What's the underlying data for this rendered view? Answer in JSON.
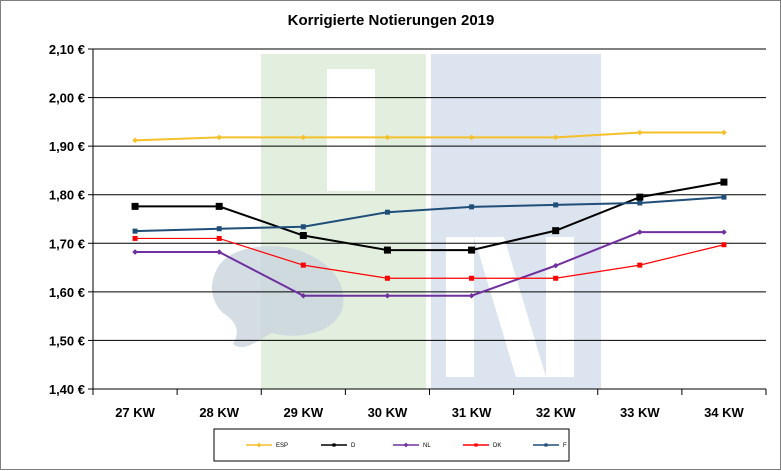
{
  "chart_data": {
    "type": "line",
    "title": "Korrigierte Notierungen 2019",
    "categories": [
      "27 KW",
      "28 KW",
      "29 KW",
      "30 KW",
      "31 KW",
      "32 KW",
      "33 KW",
      "34 KW"
    ],
    "y_ticks": [
      "2,10 €",
      "2,00 €",
      "1,90 €",
      "1,80 €",
      "1,70 €",
      "1,60 €",
      "1,50 €",
      "1,40 €"
    ],
    "ylim": [
      1.4,
      2.1
    ],
    "grid": true,
    "legend_position": "bottom",
    "series": [
      {
        "name": "ESP",
        "color": "#f5c02a",
        "marker": "diamond",
        "values": [
          1.912,
          1.918,
          1.918,
          1.918,
          1.918,
          1.918,
          1.928,
          1.928
        ]
      },
      {
        "name": "D",
        "color": "#000000",
        "marker": "square",
        "values": [
          1.776,
          1.776,
          1.716,
          1.686,
          1.686,
          1.726,
          1.795,
          1.826
        ]
      },
      {
        "name": "NL",
        "color": "#7030a0",
        "marker": "diamond",
        "values": [
          1.682,
          1.682,
          1.592,
          1.592,
          1.592,
          1.654,
          1.723,
          1.723
        ]
      },
      {
        "name": "DK",
        "color": "#ff0000",
        "marker": "square",
        "values": [
          1.71,
          1.71,
          1.655,
          1.628,
          1.628,
          1.628,
          1.655,
          1.697
        ]
      },
      {
        "name": "F",
        "color": "#1f4e79",
        "marker": "square",
        "values": [
          1.725,
          1.73,
          1.734,
          1.764,
          1.775,
          1.779,
          1.783,
          1.795
        ]
      }
    ]
  }
}
